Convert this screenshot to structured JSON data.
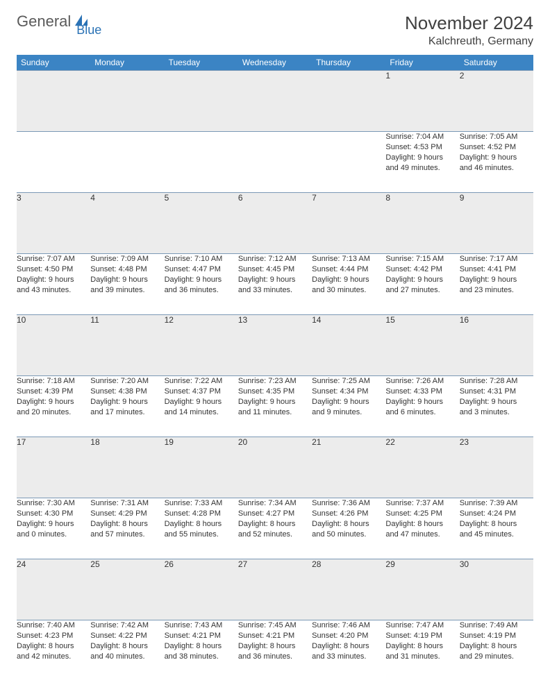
{
  "brand": {
    "text1": "General",
    "text2": "Blue"
  },
  "title": "November 2024",
  "location": "Kalchreuth, Germany",
  "colors": {
    "header_bg": "#3b84c4",
    "header_fg": "#ffffff",
    "daynum_bg": "#ececec",
    "border": "#7a98b5",
    "logo_gray": "#5a5a5a",
    "logo_blue": "#2a72b5"
  },
  "day_headers": [
    "Sunday",
    "Monday",
    "Tuesday",
    "Wednesday",
    "Thursday",
    "Friday",
    "Saturday"
  ],
  "weeks": [
    {
      "nums": [
        "",
        "",
        "",
        "",
        "",
        "1",
        "2"
      ],
      "cells": [
        null,
        null,
        null,
        null,
        null,
        {
          "sunrise": "Sunrise: 7:04 AM",
          "sunset": "Sunset: 4:53 PM",
          "day1": "Daylight: 9 hours",
          "day2": "and 49 minutes."
        },
        {
          "sunrise": "Sunrise: 7:05 AM",
          "sunset": "Sunset: 4:52 PM",
          "day1": "Daylight: 9 hours",
          "day2": "and 46 minutes."
        }
      ]
    },
    {
      "nums": [
        "3",
        "4",
        "5",
        "6",
        "7",
        "8",
        "9"
      ],
      "cells": [
        {
          "sunrise": "Sunrise: 7:07 AM",
          "sunset": "Sunset: 4:50 PM",
          "day1": "Daylight: 9 hours",
          "day2": "and 43 minutes."
        },
        {
          "sunrise": "Sunrise: 7:09 AM",
          "sunset": "Sunset: 4:48 PM",
          "day1": "Daylight: 9 hours",
          "day2": "and 39 minutes."
        },
        {
          "sunrise": "Sunrise: 7:10 AM",
          "sunset": "Sunset: 4:47 PM",
          "day1": "Daylight: 9 hours",
          "day2": "and 36 minutes."
        },
        {
          "sunrise": "Sunrise: 7:12 AM",
          "sunset": "Sunset: 4:45 PM",
          "day1": "Daylight: 9 hours",
          "day2": "and 33 minutes."
        },
        {
          "sunrise": "Sunrise: 7:13 AM",
          "sunset": "Sunset: 4:44 PM",
          "day1": "Daylight: 9 hours",
          "day2": "and 30 minutes."
        },
        {
          "sunrise": "Sunrise: 7:15 AM",
          "sunset": "Sunset: 4:42 PM",
          "day1": "Daylight: 9 hours",
          "day2": "and 27 minutes."
        },
        {
          "sunrise": "Sunrise: 7:17 AM",
          "sunset": "Sunset: 4:41 PM",
          "day1": "Daylight: 9 hours",
          "day2": "and 23 minutes."
        }
      ]
    },
    {
      "nums": [
        "10",
        "11",
        "12",
        "13",
        "14",
        "15",
        "16"
      ],
      "cells": [
        {
          "sunrise": "Sunrise: 7:18 AM",
          "sunset": "Sunset: 4:39 PM",
          "day1": "Daylight: 9 hours",
          "day2": "and 20 minutes."
        },
        {
          "sunrise": "Sunrise: 7:20 AM",
          "sunset": "Sunset: 4:38 PM",
          "day1": "Daylight: 9 hours",
          "day2": "and 17 minutes."
        },
        {
          "sunrise": "Sunrise: 7:22 AM",
          "sunset": "Sunset: 4:37 PM",
          "day1": "Daylight: 9 hours",
          "day2": "and 14 minutes."
        },
        {
          "sunrise": "Sunrise: 7:23 AM",
          "sunset": "Sunset: 4:35 PM",
          "day1": "Daylight: 9 hours",
          "day2": "and 11 minutes."
        },
        {
          "sunrise": "Sunrise: 7:25 AM",
          "sunset": "Sunset: 4:34 PM",
          "day1": "Daylight: 9 hours",
          "day2": "and 9 minutes."
        },
        {
          "sunrise": "Sunrise: 7:26 AM",
          "sunset": "Sunset: 4:33 PM",
          "day1": "Daylight: 9 hours",
          "day2": "and 6 minutes."
        },
        {
          "sunrise": "Sunrise: 7:28 AM",
          "sunset": "Sunset: 4:31 PM",
          "day1": "Daylight: 9 hours",
          "day2": "and 3 minutes."
        }
      ]
    },
    {
      "nums": [
        "17",
        "18",
        "19",
        "20",
        "21",
        "22",
        "23"
      ],
      "cells": [
        {
          "sunrise": "Sunrise: 7:30 AM",
          "sunset": "Sunset: 4:30 PM",
          "day1": "Daylight: 9 hours",
          "day2": "and 0 minutes."
        },
        {
          "sunrise": "Sunrise: 7:31 AM",
          "sunset": "Sunset: 4:29 PM",
          "day1": "Daylight: 8 hours",
          "day2": "and 57 minutes."
        },
        {
          "sunrise": "Sunrise: 7:33 AM",
          "sunset": "Sunset: 4:28 PM",
          "day1": "Daylight: 8 hours",
          "day2": "and 55 minutes."
        },
        {
          "sunrise": "Sunrise: 7:34 AM",
          "sunset": "Sunset: 4:27 PM",
          "day1": "Daylight: 8 hours",
          "day2": "and 52 minutes."
        },
        {
          "sunrise": "Sunrise: 7:36 AM",
          "sunset": "Sunset: 4:26 PM",
          "day1": "Daylight: 8 hours",
          "day2": "and 50 minutes."
        },
        {
          "sunrise": "Sunrise: 7:37 AM",
          "sunset": "Sunset: 4:25 PM",
          "day1": "Daylight: 8 hours",
          "day2": "and 47 minutes."
        },
        {
          "sunrise": "Sunrise: 7:39 AM",
          "sunset": "Sunset: 4:24 PM",
          "day1": "Daylight: 8 hours",
          "day2": "and 45 minutes."
        }
      ]
    },
    {
      "nums": [
        "24",
        "25",
        "26",
        "27",
        "28",
        "29",
        "30"
      ],
      "cells": [
        {
          "sunrise": "Sunrise: 7:40 AM",
          "sunset": "Sunset: 4:23 PM",
          "day1": "Daylight: 8 hours",
          "day2": "and 42 minutes."
        },
        {
          "sunrise": "Sunrise: 7:42 AM",
          "sunset": "Sunset: 4:22 PM",
          "day1": "Daylight: 8 hours",
          "day2": "and 40 minutes."
        },
        {
          "sunrise": "Sunrise: 7:43 AM",
          "sunset": "Sunset: 4:21 PM",
          "day1": "Daylight: 8 hours",
          "day2": "and 38 minutes."
        },
        {
          "sunrise": "Sunrise: 7:45 AM",
          "sunset": "Sunset: 4:21 PM",
          "day1": "Daylight: 8 hours",
          "day2": "and 36 minutes."
        },
        {
          "sunrise": "Sunrise: 7:46 AM",
          "sunset": "Sunset: 4:20 PM",
          "day1": "Daylight: 8 hours",
          "day2": "and 33 minutes."
        },
        {
          "sunrise": "Sunrise: 7:47 AM",
          "sunset": "Sunset: 4:19 PM",
          "day1": "Daylight: 8 hours",
          "day2": "and 31 minutes."
        },
        {
          "sunrise": "Sunrise: 7:49 AM",
          "sunset": "Sunset: 4:19 PM",
          "day1": "Daylight: 8 hours",
          "day2": "and 29 minutes."
        }
      ]
    }
  ]
}
